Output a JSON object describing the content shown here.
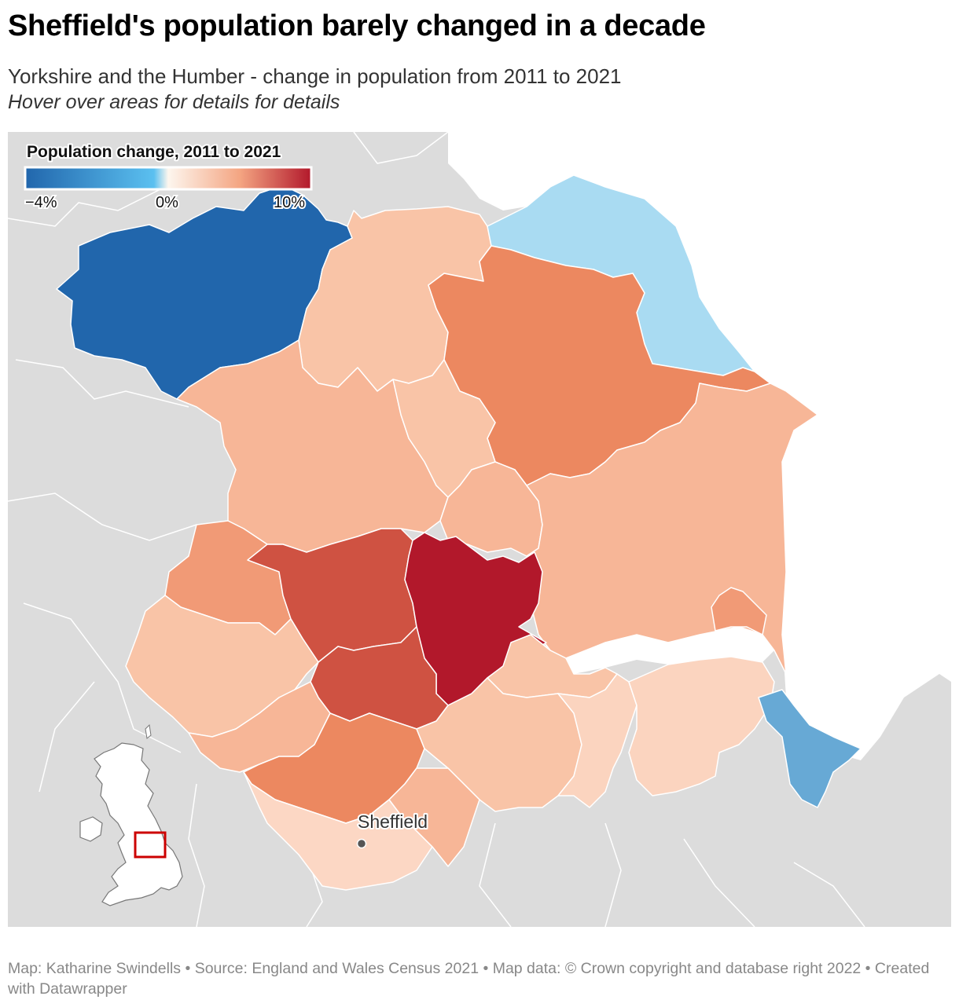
{
  "title": "Sheffield's population barely changed in a decade",
  "subtitle": "Yorkshire and the Humber - change in population from 2011 to 2021",
  "note": "Hover over areas for details for details",
  "legend": {
    "title": "Population change, 2011 to 2021",
    "ticks": [
      "−4%",
      "0%",
      "10%"
    ],
    "colors": [
      "#2166ac",
      "#5bc0f0",
      "#fdf6ee",
      "#f4a582",
      "#b2182b"
    ]
  },
  "city": {
    "name": "Sheffield"
  },
  "footer": "Map: Katharine Swindells • Source: England and Wales Census 2021 • Map data: © Crown copyright and database right 2022  • Created with Datawrapper",
  "colors": {
    "background_land": "#dcdcdc",
    "sea": "#ffffff",
    "dark_blue": "#2166ac",
    "light_blue": "#a9dbf2",
    "mid_blue": "#67a9d5",
    "pale_peach": "#fbd4bf",
    "light_peach": "#f9c4a7",
    "peach": "#f7b697",
    "salmon": "#f19a76",
    "orange": "#ec8860",
    "red_orange": "#cf5242",
    "dark_red": "#b2182b",
    "inset_frame": "#cc0000"
  }
}
